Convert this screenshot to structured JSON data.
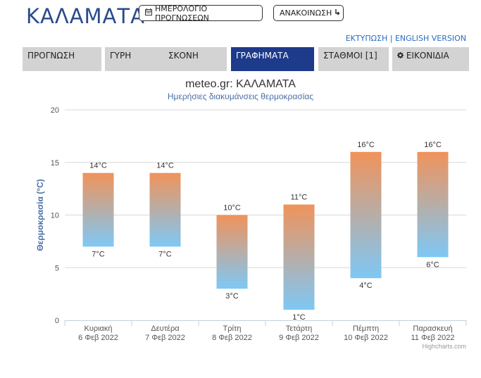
{
  "header": {
    "city": "ΚΑΛΑΜΑΤΑ",
    "calendar_button": "ΗΜΕΡΟΛΟΓΙΟ ΠΡΟΓΝΩΣΕΩΝ",
    "announce_button": "ΑΝΑΚΟΙΝΩΣΗ"
  },
  "links": {
    "print": "ΕΚΤΥΠΩΣΗ",
    "separator": " | ",
    "english": "ENGLISH VERSION"
  },
  "tabs": [
    {
      "label": "ΠΡΟΓΝΩΣΗ"
    },
    {
      "label": "ΓΥΡΗ"
    },
    {
      "label": "ΣΚΟΝΗ"
    },
    {
      "label": "ΓΡΑΦΗΜΑΤΑ"
    },
    {
      "label": "ΣΤΑΘΜΟΙ [1]"
    },
    {
      "label": "ΕΙΚΟΝΙΔΙΑ"
    }
  ],
  "colors": {
    "accent": "#1e3a8a",
    "bar_top": "#f0935a",
    "bar_bottom": "#7ec8f5"
  },
  "chart_data": {
    "type": "bar",
    "subtype": "columnrange",
    "title": "meteo.gr: ΚΑΛΑΜΑΤΑ",
    "subtitle": "Ημερήσιες διακυμάνσεις θερμοκρασίας",
    "ylabel": "Θερμοκρασία (°C)",
    "ylim": [
      0,
      20
    ],
    "yticks": [
      "0",
      "5",
      "10",
      "15",
      "20"
    ],
    "grid": true,
    "categories": [
      {
        "day": "Κυριακή",
        "date": "6 Φεβ 2022"
      },
      {
        "day": "Δευτέρα",
        "date": "7 Φεβ 2022"
      },
      {
        "day": "Τρίτη",
        "date": "8 Φεβ 2022"
      },
      {
        "day": "Τετάρτη",
        "date": "9 Φεβ 2022"
      },
      {
        "day": "Πέμπτη",
        "date": "10 Φεβ 2022"
      },
      {
        "day": "Παρασκευή",
        "date": "11 Φεβ 2022"
      }
    ],
    "low": [
      7,
      7,
      3,
      1,
      4,
      6
    ],
    "high": [
      14,
      14,
      10,
      11,
      16,
      16
    ],
    "low_labels": [
      "7°C",
      "7°C",
      "3°C",
      "1°C",
      "4°C",
      "6°C"
    ],
    "high_labels": [
      "14°C",
      "14°C",
      "10°C",
      "11°C",
      "16°C",
      "16°C"
    ],
    "credits": "Highcharts.com"
  }
}
